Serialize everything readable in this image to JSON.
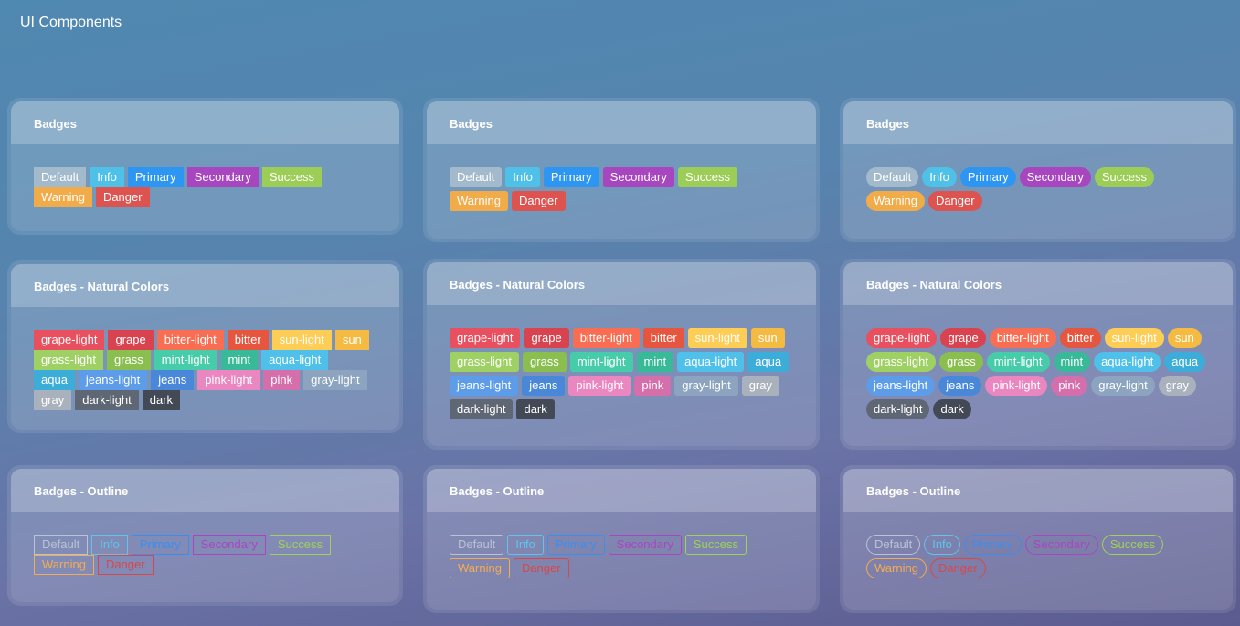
{
  "page": {
    "title": "UI Components"
  },
  "titles": {
    "badges": "Badges",
    "natural": "Badges - Natural Colors",
    "outline": "Badges - Outline"
  },
  "badges": [
    {
      "label": "Default",
      "color": "#a3bacd"
    },
    {
      "label": "Info",
      "color": "#4fc1e9"
    },
    {
      "label": "Primary",
      "color": "#2d96f3"
    },
    {
      "label": "Secondary",
      "color": "#a746bf"
    },
    {
      "label": "Success",
      "color": "#9ccd57"
    },
    {
      "label": "Warning",
      "color": "#f1ab48"
    },
    {
      "label": "Danger",
      "color": "#dc5350"
    }
  ],
  "natural": [
    {
      "label": "grape-light",
      "color": "#e9505f"
    },
    {
      "label": "grape",
      "color": "#d8434f"
    },
    {
      "label": "bitter-light",
      "color": "#f96e52"
    },
    {
      "label": "bitter",
      "color": "#e6553d"
    },
    {
      "label": "sun-light",
      "color": "#fdcd55"
    },
    {
      "label": "sun",
      "color": "#f4ba42"
    },
    {
      "label": "grass-light",
      "color": "#9ed064"
    },
    {
      "label": "grass",
      "color": "#8abf50"
    },
    {
      "label": "mint-light",
      "color": "#47ccaa"
    },
    {
      "label": "mint",
      "color": "#38b997"
    },
    {
      "label": "aqua-light",
      "color": "#4ec0e9"
    },
    {
      "label": "aqua",
      "color": "#3badd8"
    },
    {
      "label": "jeans-light",
      "color": "#5c9ce9"
    },
    {
      "label": "jeans",
      "color": "#4988d8"
    },
    {
      "label": "pink-light",
      "color": "#ea86c0"
    },
    {
      "label": "pink",
      "color": "#d46fab"
    },
    {
      "label": "gray-light",
      "color": "#8ca4bf"
    },
    {
      "label": "gray",
      "color": "#a9b1bc"
    },
    {
      "label": "dark-light",
      "color": "#5f6774"
    },
    {
      "label": "dark",
      "color": "#434a56"
    }
  ],
  "outline": [
    {
      "label": "Default",
      "color": "#b8c4d6"
    },
    {
      "label": "Info",
      "color": "#5cc6ec"
    },
    {
      "label": "Primary",
      "color": "#3a8ef0"
    },
    {
      "label": "Secondary",
      "color": "#a945c2"
    },
    {
      "label": "Success",
      "color": "#9ed25a"
    },
    {
      "label": "Warning",
      "color": "#f4ac52"
    },
    {
      "label": "Danger",
      "color": "#d9464a"
    }
  ]
}
